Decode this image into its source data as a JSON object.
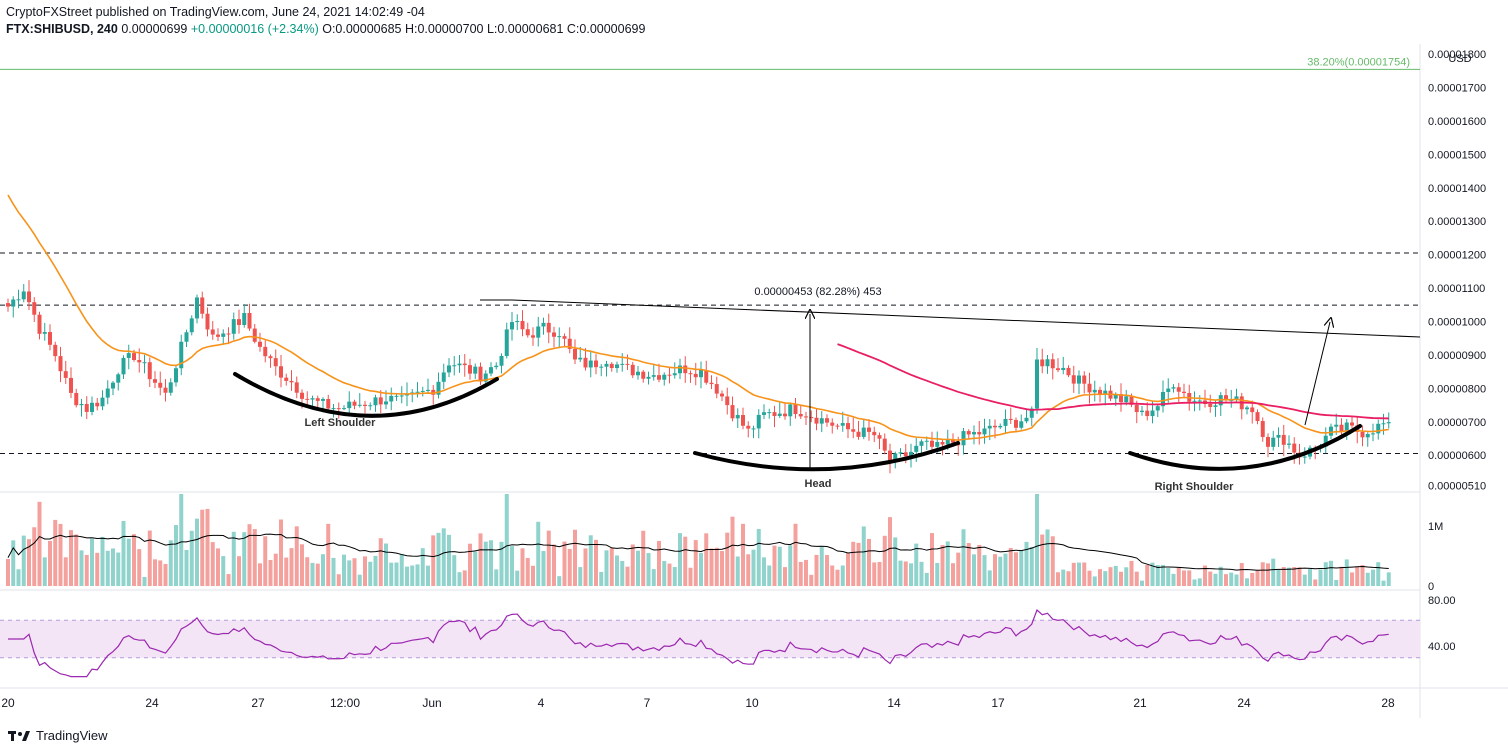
{
  "header": {
    "line1": "CryptoFXStreet published on TradingView.com, June 24, 2021 14:02:49 -04",
    "symbol": "FTX:SHIBUSD, 240",
    "last": "0.00000699",
    "change": "+0.00000016 (+2.34%)",
    "ohlc": "O:0.00000685 H:0.00000700 L:0.00000681 C:0.00000699"
  },
  "footer": {
    "brand": "TradingView"
  },
  "colors": {
    "up": "#26a69a",
    "down": "#ef5350",
    "ema50": "#f7931a",
    "ema200": "#e91e63",
    "rsi": "#9c27b0",
    "rsi_band": "#f3e5f5",
    "fib": "#66bb6a",
    "neckline": "#000000"
  },
  "chart_data": {
    "type": "candlestick",
    "y_axis": {
      "unit": "USD",
      "range": [
        4.9e-06,
        1.83e-05
      ],
      "ticks": [
        "0.00001800",
        "0.00001700",
        "0.00001600",
        "0.00001500",
        "0.00001400",
        "0.00001300",
        "0.00001200",
        "0.00001100",
        "0.00001000",
        "0.00000900",
        "0.00000800",
        "0.00000700",
        "0.00000600",
        "0.00000510"
      ]
    },
    "x_axis": {
      "ticks": [
        "20",
        "24",
        "27",
        "12:00",
        "Jun",
        "4",
        "7",
        "10",
        "14",
        "17",
        "21",
        "24",
        "28"
      ]
    },
    "fibonacci": {
      "label": "38.20%(0.00001754)",
      "value": 1.754e-05
    },
    "horizontal_levels": [
      1.205e-05,
      1.049e-05,
      6.05e-06
    ],
    "measure_label": "0.00000453 (82.28%) 453",
    "annotations": [
      "Left Shoulder",
      "Head",
      "Right Shoulder"
    ],
    "volume_axis": [
      "1M",
      "0"
    ],
    "rsi_axis": [
      "80.00",
      "40.00"
    ],
    "rsi_band": [
      70,
      30
    ],
    "rsi_range": [
      0,
      100
    ],
    "anchors": [
      {
        "x": 0,
        "y": 1.045e-05
      },
      {
        "x": 3,
        "y": 1.1e-05
      },
      {
        "x": 6,
        "y": 9.8e-06
      },
      {
        "x": 9,
        "y": 9e-06
      },
      {
        "x": 12,
        "y": 7.8e-06
      },
      {
        "x": 15,
        "y": 7.4e-06
      },
      {
        "x": 18,
        "y": 7.7e-06
      },
      {
        "x": 21,
        "y": 8.6e-06
      },
      {
        "x": 24,
        "y": 9e-06
      },
      {
        "x": 27,
        "y": 8.4e-06
      },
      {
        "x": 30,
        "y": 7.8e-06
      },
      {
        "x": 33,
        "y": 9.2e-06
      },
      {
        "x": 36,
        "y": 1.07e-05
      },
      {
        "x": 39,
        "y": 9.5e-06
      },
      {
        "x": 42,
        "y": 9.8e-06
      },
      {
        "x": 45,
        "y": 1.01e-05
      },
      {
        "x": 48,
        "y": 9.2e-06
      },
      {
        "x": 51,
        "y": 8.6e-06
      },
      {
        "x": 54,
        "y": 8.2e-06
      },
      {
        "x": 57,
        "y": 7.7e-06
      },
      {
        "x": 60,
        "y": 7.5e-06
      },
      {
        "x": 63,
        "y": 7.4e-06
      },
      {
        "x": 66,
        "y": 7.5e-06
      },
      {
        "x": 69,
        "y": 7.6e-06
      },
      {
        "x": 72,
        "y": 7.7e-06
      },
      {
        "x": 75,
        "y": 7.6e-06
      },
      {
        "x": 78,
        "y": 7.8e-06
      },
      {
        "x": 81,
        "y": 8e-06
      },
      {
        "x": 84,
        "y": 8.8e-06
      },
      {
        "x": 87,
        "y": 8.6e-06
      },
      {
        "x": 90,
        "y": 8.4e-06
      },
      {
        "x": 93,
        "y": 8.7e-06
      },
      {
        "x": 96,
        "y": 1e-05
      },
      {
        "x": 99,
        "y": 9.6e-06
      },
      {
        "x": 102,
        "y": 9.8e-06
      },
      {
        "x": 105,
        "y": 9.7e-06
      },
      {
        "x": 108,
        "y": 8.8e-06
      },
      {
        "x": 111,
        "y": 8.7e-06
      },
      {
        "x": 114,
        "y": 8.9e-06
      },
      {
        "x": 117,
        "y": 8.6e-06
      },
      {
        "x": 120,
        "y": 8.5e-06
      },
      {
        "x": 123,
        "y": 8.4e-06
      },
      {
        "x": 126,
        "y": 8.5e-06
      },
      {
        "x": 129,
        "y": 8.6e-06
      },
      {
        "x": 132,
        "y": 8.5e-06
      },
      {
        "x": 135,
        "y": 8e-06
      },
      {
        "x": 138,
        "y": 7.3e-06
      },
      {
        "x": 141,
        "y": 6.7e-06
      },
      {
        "x": 144,
        "y": 7.2e-06
      },
      {
        "x": 147,
        "y": 7.3e-06
      },
      {
        "x": 150,
        "y": 7.4e-06
      },
      {
        "x": 153,
        "y": 7.2e-06
      },
      {
        "x": 156,
        "y": 7e-06
      },
      {
        "x": 159,
        "y": 6.8e-06
      },
      {
        "x": 162,
        "y": 6.7e-06
      },
      {
        "x": 165,
        "y": 6.6e-06
      },
      {
        "x": 168,
        "y": 5.8e-06
      },
      {
        "x": 171,
        "y": 6e-06
      },
      {
        "x": 174,
        "y": 6.3e-06
      },
      {
        "x": 177,
        "y": 6.2e-06
      },
      {
        "x": 180,
        "y": 6.4e-06
      },
      {
        "x": 183,
        "y": 6.6e-06
      },
      {
        "x": 186,
        "y": 6.7e-06
      },
      {
        "x": 189,
        "y": 6.9e-06
      },
      {
        "x": 192,
        "y": 7e-06
      },
      {
        "x": 195,
        "y": 7.2e-06
      },
      {
        "x": 196,
        "y": 8.8e-06
      },
      {
        "x": 198,
        "y": 8.8e-06
      },
      {
        "x": 201,
        "y": 8.6e-06
      },
      {
        "x": 204,
        "y": 8.2e-06
      },
      {
        "x": 207,
        "y": 8e-06
      },
      {
        "x": 210,
        "y": 7.8e-06
      },
      {
        "x": 213,
        "y": 7.6e-06
      },
      {
        "x": 216,
        "y": 7.2e-06
      },
      {
        "x": 219,
        "y": 7.5e-06
      },
      {
        "x": 222,
        "y": 8.2e-06
      },
      {
        "x": 225,
        "y": 7.7e-06
      },
      {
        "x": 228,
        "y": 7.6e-06
      },
      {
        "x": 231,
        "y": 7.7e-06
      },
      {
        "x": 234,
        "y": 7.6e-06
      },
      {
        "x": 237,
        "y": 7.4e-06
      },
      {
        "x": 240,
        "y": 6.4e-06
      },
      {
        "x": 243,
        "y": 6.5e-06
      },
      {
        "x": 246,
        "y": 6e-06
      },
      {
        "x": 249,
        "y": 6.2e-06
      },
      {
        "x": 252,
        "y": 6.7e-06
      },
      {
        "x": 255,
        "y": 6.8e-06
      },
      {
        "x": 258,
        "y": 6.7e-06
      },
      {
        "x": 261,
        "y": 6.85e-06
      },
      {
        "x": 263,
        "y": 6.99e-06
      }
    ]
  }
}
